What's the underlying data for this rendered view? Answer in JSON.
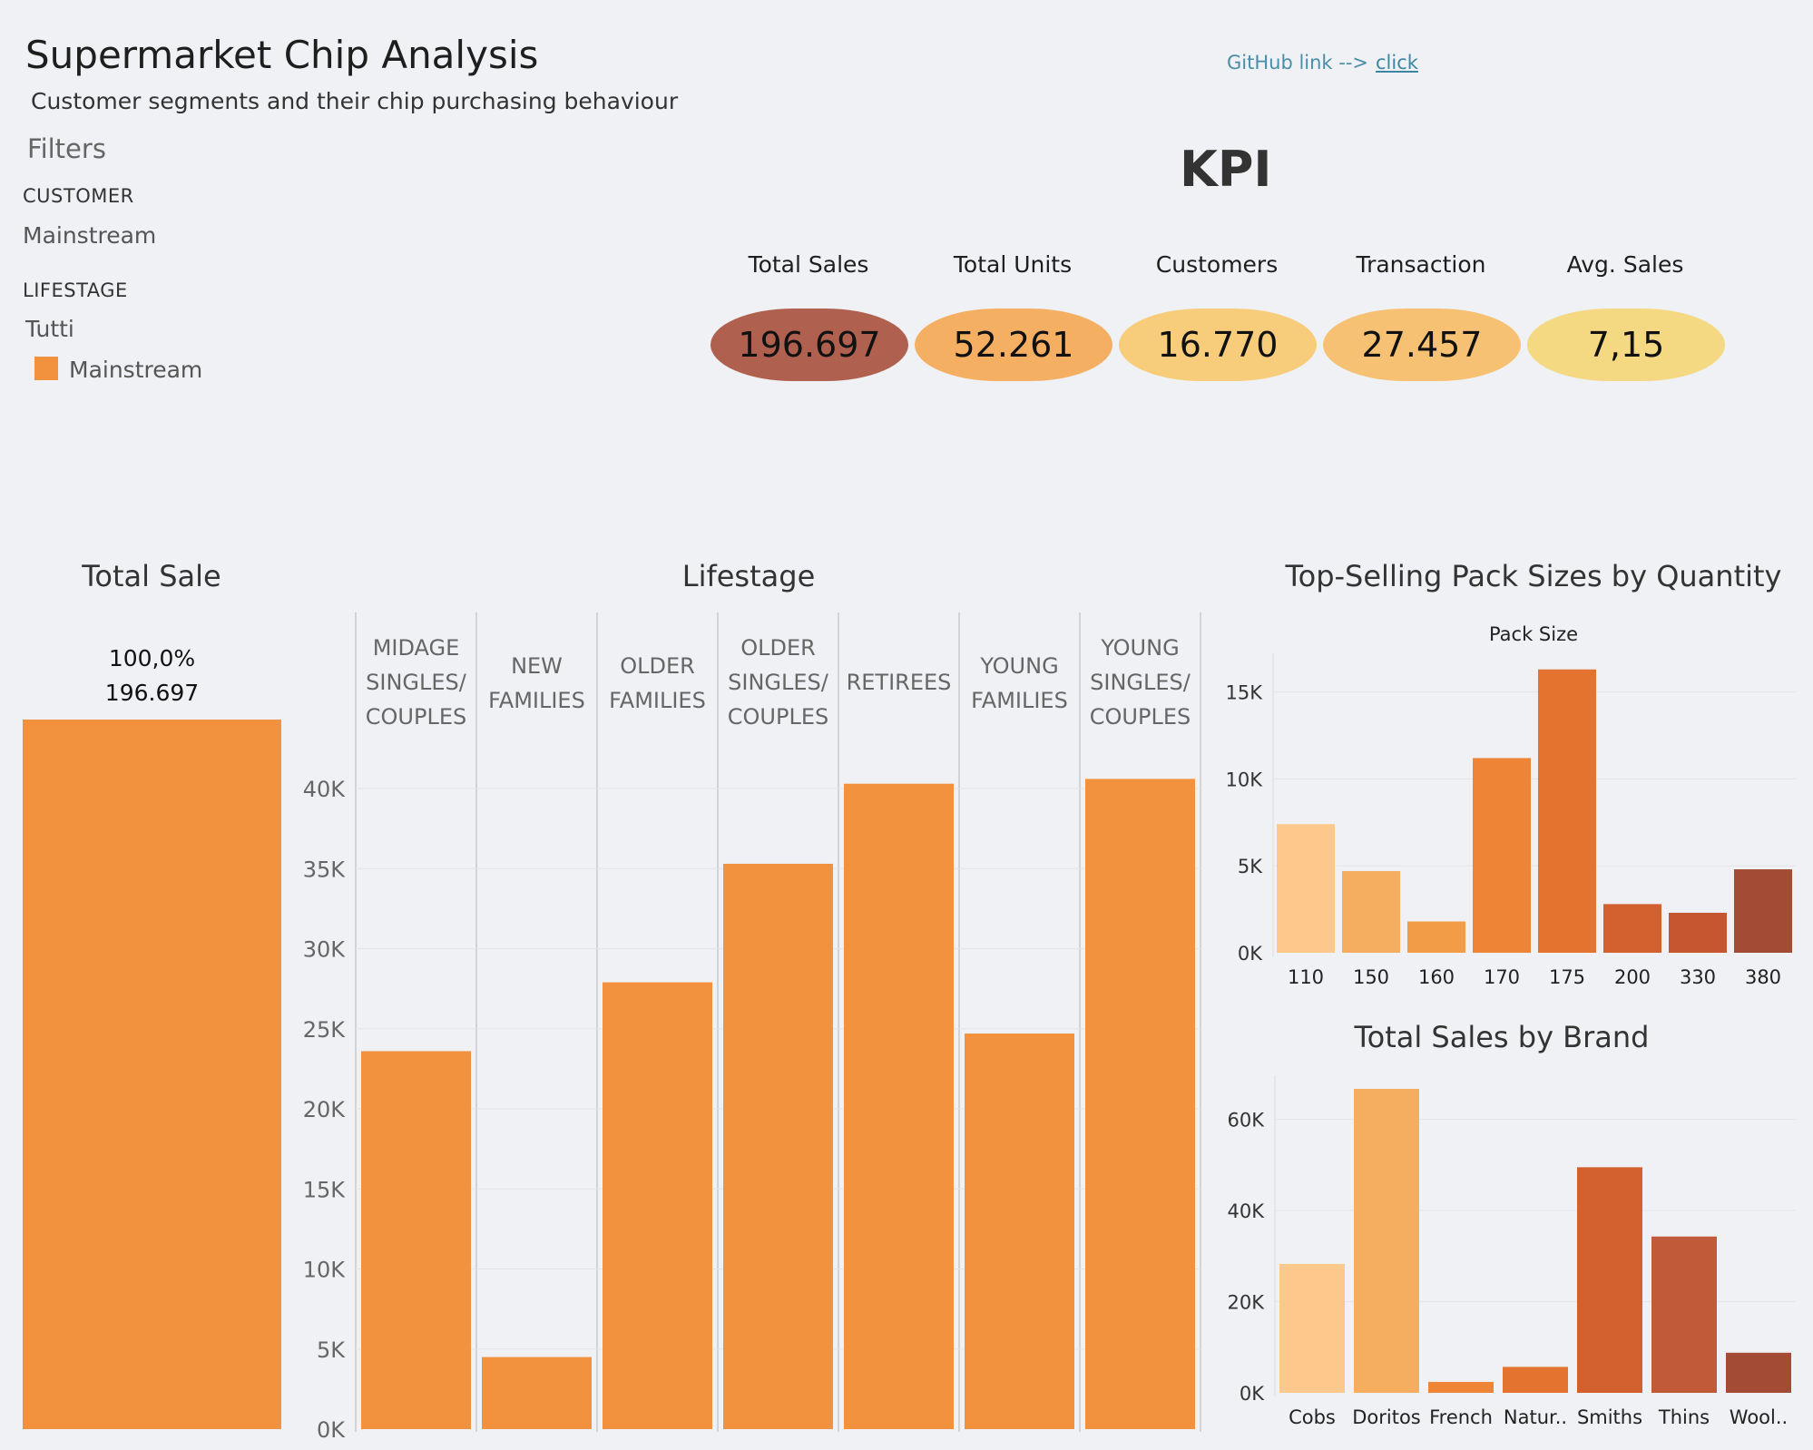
{
  "header": {
    "title": "Supermarket Chip Analysis",
    "subtitle": "Customer segments and their chip purchasing behaviour",
    "github_label": "GitHub link -->",
    "github_link": "click"
  },
  "filters": {
    "title": "Filters",
    "customer_label": "CUSTOMER",
    "customer_value": "Mainstream",
    "lifestage_label": "LIFESTAGE",
    "lifestage_value": "Tutti",
    "legend_item": "Mainstream",
    "legend_color": "#f2923e"
  },
  "kpi": {
    "heading": "KPI",
    "items": [
      {
        "label": "Total Sales",
        "value": "196.697",
        "color": "#b0604e"
      },
      {
        "label": "Total Units",
        "value": "52.261",
        "color": "#f4af63"
      },
      {
        "label": "Customers",
        "value": "16.770",
        "color": "#f7cd7b"
      },
      {
        "label": "Transaction",
        "value": "27.457",
        "color": "#f7c173"
      },
      {
        "label": "Avg. Sales",
        "value": "7,15",
        "color": "#f4d882"
      }
    ]
  },
  "chart_data": [
    {
      "type": "bar",
      "title": "Total Sale",
      "categories": [
        "Mainstream"
      ],
      "values": [
        196697
      ],
      "labels": [
        "100,0%",
        "196.697"
      ],
      "color": "#f2923e"
    },
    {
      "type": "bar",
      "title": "Lifestage",
      "categories": [
        "MIDAGE SINGLES/ COUPLES",
        "NEW FAMILIES",
        "OLDER FAMILIES",
        "OLDER SINGLES/ COUPLES",
        "RETIREES",
        "YOUNG FAMILIES",
        "YOUNG SINGLES/ COUPLES"
      ],
      "values": [
        23600,
        4500,
        27900,
        35300,
        40300,
        24700,
        40600
      ],
      "yticks": [
        "0K",
        "5K",
        "10K",
        "15K",
        "20K",
        "25K",
        "30K",
        "35K",
        "40K"
      ],
      "ylim": [
        0,
        45000
      ],
      "color": "#f2923e"
    },
    {
      "type": "bar",
      "title": "Top-Selling Pack Sizes by Quantity",
      "xlabel": "Pack Size",
      "categories": [
        "110",
        "150",
        "160",
        "170",
        "175",
        "200",
        "330",
        "380"
      ],
      "values": [
        7400,
        4700,
        1800,
        11200,
        16300,
        2800,
        2300,
        4800
      ],
      "colors": [
        "#fcc88b",
        "#f5ad5f",
        "#f29c48",
        "#ee8536",
        "#e4732f",
        "#d2612f",
        "#c5562f",
        "#a44b36"
      ],
      "yticks": [
        "0K",
        "5K",
        "10K",
        "15K"
      ],
      "ylim": [
        0,
        16600
      ]
    },
    {
      "type": "bar",
      "title": "Total Sales by Brand",
      "categories": [
        "Cobs",
        "Doritos",
        "French",
        "Natur..",
        "Smiths",
        "Thins",
        "Wool.."
      ],
      "values": [
        28300,
        66700,
        2400,
        5700,
        49500,
        34300,
        8800
      ],
      "colors": [
        "#fcc88b",
        "#f5ad5f",
        "#ee8536",
        "#e4732f",
        "#d2612f",
        "#c05a38",
        "#a44b36"
      ],
      "yticks": [
        "0K",
        "20K",
        "40K",
        "60K"
      ],
      "ylim": [
        0,
        66700
      ]
    }
  ]
}
